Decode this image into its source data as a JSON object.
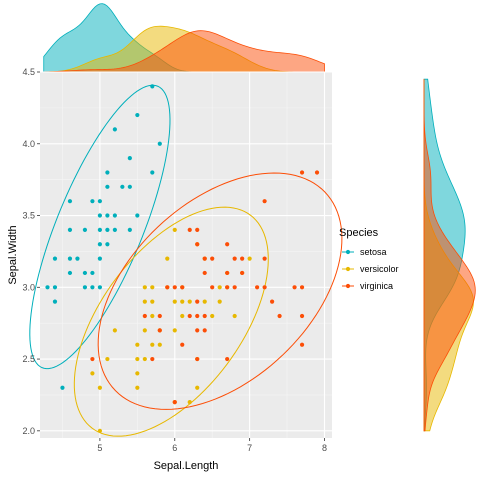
{
  "chart_data": {
    "type": "scatter",
    "title": "",
    "xlabel": "Sepal.Length",
    "ylabel": "Sepal.Width",
    "xlim": [
      4.2,
      8.1
    ],
    "ylim": [
      1.95,
      4.5
    ],
    "x_ticks": [
      5,
      6,
      7,
      8
    ],
    "x_tick_labels": [
      "5",
      "6",
      "7",
      "8"
    ],
    "y_ticks": [
      2.0,
      2.5,
      3.0,
      3.5,
      4.0,
      4.5
    ],
    "y_tick_labels": [
      "2.0",
      "2.5",
      "3.0",
      "3.5",
      "4.0",
      "4.5"
    ],
    "grid": true,
    "legend": {
      "title": "Species",
      "placement": "right"
    },
    "ellipses": true,
    "marginal_density": {
      "top": "Sepal.Length",
      "right": "Sepal.Width"
    },
    "series": [
      {
        "name": "setosa",
        "color": "#00AFBB",
        "points": [
          [
            4.3,
            3.0
          ],
          [
            4.4,
            2.9
          ],
          [
            4.4,
            3.0
          ],
          [
            4.4,
            3.2
          ],
          [
            4.5,
            2.3
          ],
          [
            4.6,
            3.1
          ],
          [
            4.6,
            3.2
          ],
          [
            4.6,
            3.4
          ],
          [
            4.6,
            3.6
          ],
          [
            4.7,
            3.2
          ],
          [
            4.8,
            3.0
          ],
          [
            4.8,
            3.1
          ],
          [
            4.8,
            3.4
          ],
          [
            4.9,
            3.0
          ],
          [
            4.9,
            3.1
          ],
          [
            4.9,
            3.6
          ],
          [
            5.0,
            3.0
          ],
          [
            5.0,
            3.2
          ],
          [
            5.0,
            3.3
          ],
          [
            5.0,
            3.4
          ],
          [
            5.0,
            3.5
          ],
          [
            5.0,
            3.6
          ],
          [
            5.1,
            3.3
          ],
          [
            5.1,
            3.4
          ],
          [
            5.1,
            3.5
          ],
          [
            5.1,
            3.7
          ],
          [
            5.1,
            3.8
          ],
          [
            5.2,
            3.4
          ],
          [
            5.2,
            3.5
          ],
          [
            5.2,
            4.1
          ],
          [
            5.3,
            3.7
          ],
          [
            5.4,
            3.4
          ],
          [
            5.4,
            3.7
          ],
          [
            5.4,
            3.9
          ],
          [
            5.5,
            3.5
          ],
          [
            5.5,
            4.2
          ],
          [
            5.7,
            3.8
          ],
          [
            5.7,
            4.4
          ],
          [
            5.8,
            4.0
          ]
        ]
      },
      {
        "name": "versicolor",
        "color": "#E7B800",
        "points": [
          [
            4.9,
            2.4
          ],
          [
            5.0,
            2.0
          ],
          [
            5.0,
            2.3
          ],
          [
            5.1,
            2.5
          ],
          [
            5.2,
            2.7
          ],
          [
            5.5,
            2.3
          ],
          [
            5.5,
            2.4
          ],
          [
            5.5,
            2.5
          ],
          [
            5.5,
            2.6
          ],
          [
            5.6,
            2.5
          ],
          [
            5.6,
            2.7
          ],
          [
            5.6,
            2.9
          ],
          [
            5.6,
            3.0
          ],
          [
            5.7,
            2.6
          ],
          [
            5.7,
            2.8
          ],
          [
            5.7,
            2.9
          ],
          [
            5.7,
            3.0
          ],
          [
            5.8,
            2.6
          ],
          [
            5.8,
            2.7
          ],
          [
            5.9,
            3.0
          ],
          [
            5.9,
            3.2
          ],
          [
            6.0,
            2.2
          ],
          [
            6.0,
            2.7
          ],
          [
            6.0,
            2.9
          ],
          [
            6.0,
            3.4
          ],
          [
            6.1,
            2.8
          ],
          [
            6.1,
            2.9
          ],
          [
            6.1,
            3.0
          ],
          [
            6.2,
            2.2
          ],
          [
            6.2,
            2.9
          ],
          [
            6.3,
            2.3
          ],
          [
            6.3,
            2.5
          ],
          [
            6.3,
            3.3
          ],
          [
            6.4,
            2.9
          ],
          [
            6.4,
            3.2
          ],
          [
            6.5,
            2.8
          ],
          [
            6.6,
            2.9
          ],
          [
            6.6,
            3.0
          ],
          [
            6.7,
            3.0
          ],
          [
            6.7,
            3.1
          ],
          [
            6.8,
            2.8
          ],
          [
            6.9,
            3.1
          ],
          [
            7.0,
            3.2
          ]
        ]
      },
      {
        "name": "virginica",
        "color": "#FC4E07",
        "points": [
          [
            4.9,
            2.5
          ],
          [
            5.6,
            2.8
          ],
          [
            5.7,
            2.5
          ],
          [
            5.8,
            2.7
          ],
          [
            5.8,
            2.8
          ],
          [
            5.9,
            3.0
          ],
          [
            6.0,
            2.2
          ],
          [
            6.0,
            3.0
          ],
          [
            6.1,
            2.6
          ],
          [
            6.1,
            3.0
          ],
          [
            6.2,
            2.8
          ],
          [
            6.2,
            3.4
          ],
          [
            6.3,
            2.5
          ],
          [
            6.3,
            2.7
          ],
          [
            6.3,
            2.8
          ],
          [
            6.3,
            2.9
          ],
          [
            6.3,
            3.3
          ],
          [
            6.3,
            3.4
          ],
          [
            6.4,
            2.7
          ],
          [
            6.4,
            2.8
          ],
          [
            6.4,
            3.1
          ],
          [
            6.4,
            3.2
          ],
          [
            6.5,
            3.0
          ],
          [
            6.5,
            3.2
          ],
          [
            6.7,
            2.5
          ],
          [
            6.7,
            3.0
          ],
          [
            6.7,
            3.1
          ],
          [
            6.7,
            3.3
          ],
          [
            6.8,
            3.0
          ],
          [
            6.8,
            3.2
          ],
          [
            6.9,
            3.1
          ],
          [
            6.9,
            3.2
          ],
          [
            7.1,
            3.0
          ],
          [
            7.2,
            3.0
          ],
          [
            7.2,
            3.2
          ],
          [
            7.2,
            3.6
          ],
          [
            7.3,
            2.9
          ],
          [
            7.4,
            2.8
          ],
          [
            7.6,
            3.0
          ],
          [
            7.7,
            2.6
          ],
          [
            7.7,
            2.8
          ],
          [
            7.7,
            3.0
          ],
          [
            7.7,
            3.8
          ],
          [
            7.9,
            3.8
          ]
        ]
      }
    ]
  }
}
